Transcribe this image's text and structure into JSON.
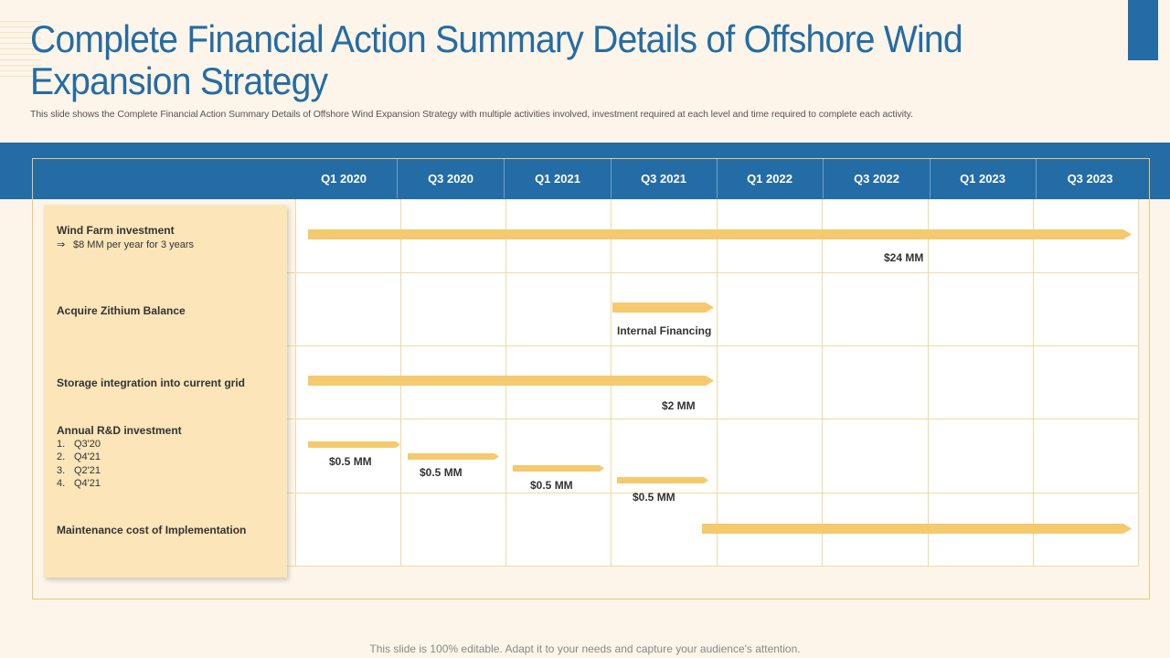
{
  "slide": {
    "title": "Complete Financial Action Summary Details of Offshore Wind Expansion Strategy",
    "subtitle": "This slide shows the Complete Financial  Action Summary Details of Offshore Wind Expansion Strategy with multiple activities involved, investment required at each level and time required to complete each activity.",
    "footer": "This slide is 100% editable. Adapt it to your needs and capture your audience's attention."
  },
  "colors": {
    "primary": "#246ca6",
    "bar": "#f5c96d",
    "panel": "#fbe5b9",
    "background": "#fdf5e9"
  },
  "quarters": [
    "Q1 2020",
    "Q3 2020",
    "Q1 2021",
    "Q3 2021",
    "Q1 2022",
    "Q3 2022",
    "Q1 2023",
    "Q3 2023"
  ],
  "rows": {
    "wind_farm": {
      "label": "Wind Farm investment",
      "note_icon": "right-arrow-icon",
      "note": "$8 MM per year for 3 years"
    },
    "zithium": {
      "label": "Acquire Zithium Balance"
    },
    "storage": {
      "label": "Storage integration into current grid"
    },
    "rd": {
      "label": "Annual R&D investment",
      "items": [
        {
          "num": "1.",
          "text": "Q3'20"
        },
        {
          "num": "2.",
          "text": "Q4'21"
        },
        {
          "num": "3.",
          "text": "Q2'21"
        },
        {
          "num": "4.",
          "text": "Q4'21"
        }
      ]
    },
    "maintenance": {
      "label": "Maintenance cost of Implementation"
    }
  },
  "bar_labels": {
    "wind_farm": "$24 MM",
    "zithium": "Internal Financing",
    "storage": "$2 MM",
    "rd": [
      "$0.5 MM",
      "$0.5 MM",
      "$0.5 MM",
      "$0.5 MM"
    ]
  }
}
